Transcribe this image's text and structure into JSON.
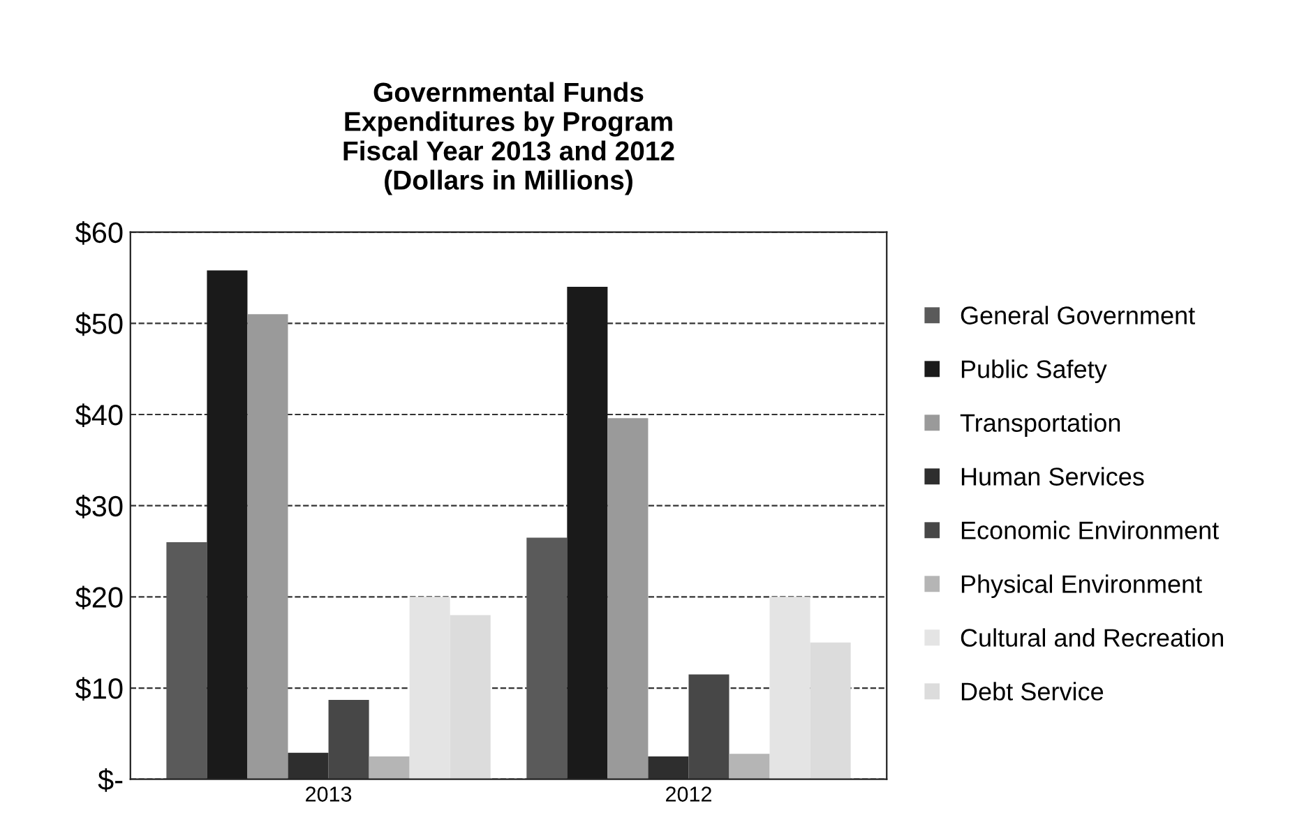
{
  "chart_data": {
    "type": "bar",
    "title": "Governmental Funds\nExpenditures by Program\nFiscal Year 2013 and 2012\n(Dollars in Millions)",
    "categories": [
      "2013",
      "2012"
    ],
    "series": [
      {
        "name": "General Government",
        "color": "#5a5a5a",
        "values": [
          26,
          26.5
        ]
      },
      {
        "name": "Public Safety",
        "color": "#1a1a1a",
        "values": [
          55.8,
          54
        ]
      },
      {
        "name": "Transportation",
        "color": "#9a9a9a",
        "values": [
          51,
          39.6
        ]
      },
      {
        "name": "Human Services",
        "color": "#2e2e2e",
        "values": [
          2.9,
          2.5
        ]
      },
      {
        "name": "Economic Environment",
        "color": "#474747",
        "values": [
          8.7,
          11.5
        ]
      },
      {
        "name": "Physical Environment",
        "color": "#b5b5b5",
        "values": [
          2.5,
          2.8
        ]
      },
      {
        "name": "Cultural and Recreation",
        "color": "#e4e4e4",
        "values": [
          20,
          20
        ]
      },
      {
        "name": "Debt Service",
        "color": "#dcdcdc",
        "values": [
          18,
          15
        ]
      }
    ],
    "ylim": [
      0,
      60
    ],
    "yticks": [
      {
        "value": 0,
        "label": "$-"
      },
      {
        "value": 10,
        "label": "$10"
      },
      {
        "value": 20,
        "label": "$20"
      },
      {
        "value": 30,
        "label": "$30"
      },
      {
        "value": 40,
        "label": "$40"
      },
      {
        "value": 50,
        "label": "$50"
      },
      {
        "value": 60,
        "label": "$60"
      }
    ],
    "grid": "y",
    "legend": "right"
  }
}
